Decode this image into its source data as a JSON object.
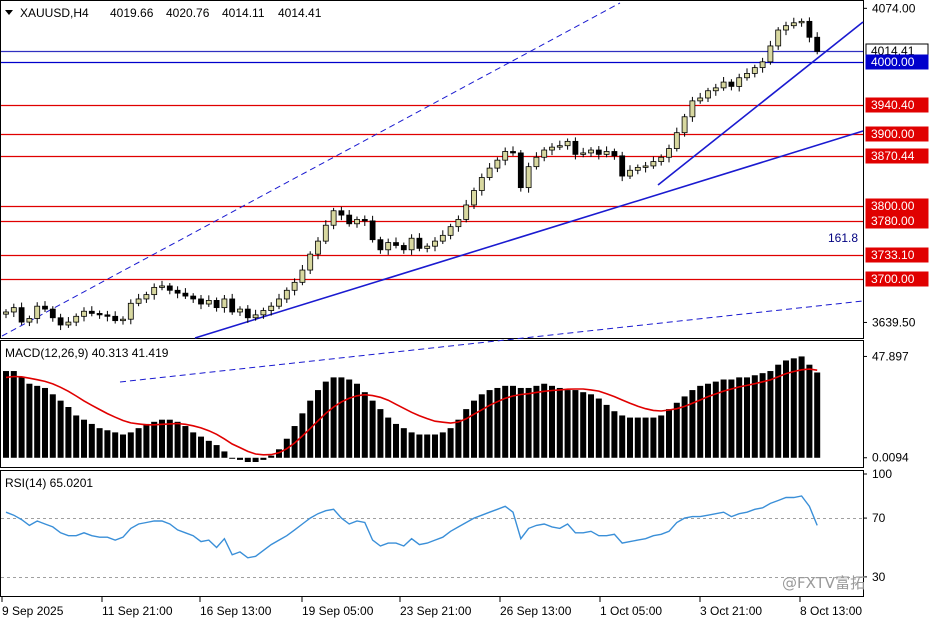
{
  "header": {
    "symbol": "XAUUSD,H4",
    "open": "4019.66",
    "high": "4020.76",
    "low": "4014.11",
    "close": "4014.41"
  },
  "watermark": "@FXTV富拓",
  "colors": {
    "bull_candle": "#d8d8a0",
    "bear_candle": "#000000",
    "trendline": "#1a1ad0",
    "level_red": "#e00000",
    "level_blue": "#0000cc",
    "macd_signal": "#e00000",
    "rsi_line": "#3a8fd8",
    "label_red_bg": "#e00000",
    "label_blue_bg": "#0000cc"
  },
  "chart_data": [
    {
      "type": "candlestick",
      "panel": "price",
      "ylim": [
        3618,
        4080
      ],
      "y_ticks": [
        "4074.00",
        "3639.50"
      ],
      "price_axis_labels": [
        {
          "text": "4014.41",
          "value": 4014.41,
          "style": "current"
        },
        {
          "text": "4000.00",
          "value": 4000.0,
          "style": "blue"
        },
        {
          "text": "3940.40",
          "value": 3940.4,
          "style": "red"
        },
        {
          "text": "3900.00",
          "value": 3900.0,
          "style": "red"
        },
        {
          "text": "3870.44",
          "value": 3870.44,
          "style": "red"
        },
        {
          "text": "3800.00",
          "value": 3800.0,
          "style": "red"
        },
        {
          "text": "3780.00",
          "value": 3780.0,
          "style": "red"
        },
        {
          "text": "3733.10",
          "value": 3733.1,
          "style": "red"
        },
        {
          "text": "3700.00",
          "value": 3700.0,
          "style": "red"
        }
      ],
      "horizontal_levels": [
        {
          "value": 4014.41,
          "color": "#3030c0"
        },
        {
          "value": 4000.0,
          "color": "#0000cc"
        },
        {
          "value": 3940.4,
          "color": "#e00000"
        },
        {
          "value": 3900.0,
          "color": "#e00000"
        },
        {
          "value": 3870.44,
          "color": "#e00000"
        },
        {
          "value": 3800.0,
          "color": "#e00000"
        },
        {
          "value": 3780.0,
          "color": "#e00000"
        },
        {
          "value": 3733.1,
          "color": "#e00000"
        },
        {
          "value": 3700.0,
          "color": "#e00000"
        }
      ],
      "annotation": "161.8",
      "close_series": [
        3654,
        3660,
        3640,
        3645,
        3662,
        3658,
        3646,
        3636,
        3640,
        3648,
        3655,
        3652,
        3650,
        3648,
        3642,
        3644,
        3666,
        3672,
        3678,
        3688,
        3690,
        3684,
        3680,
        3676,
        3672,
        3665,
        3670,
        3660,
        3672,
        3654,
        3658,
        3646,
        3650,
        3656,
        3662,
        3672,
        3684,
        3695,
        3712,
        3734,
        3752,
        3774,
        3794,
        3788,
        3776,
        3782,
        3780,
        3754,
        3740,
        3750,
        3746,
        3740,
        3756,
        3742,
        3745,
        3752,
        3760,
        3772,
        3782,
        3802,
        3822,
        3840,
        3853,
        3864,
        3876,
        3874,
        3826,
        3855,
        3868,
        3878,
        3882,
        3884,
        3890,
        3872,
        3874,
        3878,
        3872,
        3876,
        3870,
        3842,
        3850,
        3854,
        3856,
        3862,
        3868,
        3880,
        3902,
        3924,
        3946,
        3950,
        3960,
        3964,
        3972,
        3966,
        3978,
        3984,
        3992,
        4000,
        4022,
        4044,
        4050,
        4054,
        4056,
        4034,
        4014.41
      ],
      "bearish_indices": [
        2,
        5,
        6,
        7,
        11,
        12,
        13,
        14,
        21,
        22,
        23,
        24,
        25,
        27,
        29,
        31,
        43,
        44,
        46,
        47,
        48,
        50,
        51,
        53,
        65,
        66,
        73,
        76,
        78,
        79,
        93,
        103,
        104
      ]
    },
    {
      "type": "bar+line",
      "panel": "macd",
      "label": "MACD(12,26,9) 40.313 41.419",
      "ylim": [
        -2,
        50
      ],
      "y_ticks": [
        "47.897",
        "0.0094"
      ],
      "main_values": [
        41,
        41,
        38,
        35,
        34,
        33,
        30,
        27,
        24,
        20,
        18,
        16,
        14,
        13,
        12,
        11,
        12,
        14,
        16,
        17,
        18,
        18,
        17,
        15,
        12,
        10,
        8,
        6,
        3,
        0,
        -1,
        -2,
        -2,
        -1,
        1,
        4,
        9,
        15,
        21,
        27,
        32,
        36,
        38,
        38,
        37,
        35,
        31,
        27,
        23,
        19,
        16,
        14,
        12,
        11,
        11,
        11,
        12,
        14,
        18,
        23,
        27,
        30,
        32,
        33,
        34,
        34,
        33,
        33,
        34,
        35,
        34,
        33,
        32,
        32,
        31,
        30,
        28,
        25,
        22,
        20,
        19,
        19,
        19,
        19,
        20,
        23,
        26,
        29,
        32,
        34,
        35,
        36,
        37,
        37,
        38,
        38,
        39,
        40,
        41,
        44,
        46,
        47,
        47.9,
        44,
        40.313
      ],
      "signal_values": [
        38,
        38.4,
        38.3,
        37.6,
        36.9,
        36.1,
        34.9,
        33.3,
        31.4,
        29.2,
        26.9,
        24.8,
        22.8,
        20.9,
        19.2,
        17.6,
        16.5,
        16,
        15.6,
        15.6,
        15.8,
        16,
        16.2,
        15.8,
        15.1,
        14.1,
        12.8,
        11.1,
        8.9,
        6.5,
        4.8,
        3,
        1.8,
        1.4,
        1.5,
        2.4,
        4.3,
        7,
        10.3,
        13.8,
        17.5,
        21,
        24,
        26.4,
        28.1,
        29.3,
        29.8,
        29.4,
        28.6,
        27.2,
        25.3,
        23.4,
        21.5,
        19.9,
        18.5,
        17.3,
        16.8,
        16.4,
        16.9,
        18.4,
        20.6,
        22.7,
        24.8,
        26.5,
        28.1,
        29.2,
        29.9,
        30.3,
        30.9,
        31.4,
        31.8,
        32.1,
        32.4,
        32.5,
        32.5,
        32.1,
        31.5,
        30.3,
        28.9,
        27.3,
        25.8,
        24.4,
        23.2,
        22.4,
        22.1,
        22.6,
        23.2,
        24.3,
        25.8,
        27.3,
        28.9,
        30.2,
        31.5,
        32.5,
        33.5,
        34.2,
        35,
        35.9,
        36.8,
        38.3,
        39.8,
        40.8,
        41.6,
        41.9,
        41.419
      ]
    },
    {
      "type": "line",
      "panel": "rsi",
      "label": "RSI(14) 65.0201",
      "ylim": [
        17,
        100
      ],
      "y_ticks": [
        "100",
        "70",
        "30"
      ],
      "levels": [
        70,
        30
      ],
      "values": [
        74,
        72,
        69,
        65,
        68,
        66,
        64,
        60,
        58,
        58,
        60,
        58,
        57,
        57,
        55,
        57,
        63,
        66,
        67,
        68,
        68,
        66,
        62,
        60,
        58,
        54,
        55,
        50,
        56,
        45,
        47,
        43,
        44,
        48,
        52,
        55,
        58,
        62,
        66,
        70,
        73,
        75,
        76,
        70,
        66,
        68,
        67,
        55,
        51,
        53,
        53,
        51,
        56,
        52,
        53,
        55,
        57,
        61,
        64,
        67,
        70,
        72,
        74,
        76,
        78,
        74,
        56,
        63,
        65,
        66,
        64,
        63,
        66,
        60,
        60,
        61,
        58,
        58,
        59,
        53,
        54,
        55,
        56,
        58,
        59,
        61,
        67,
        70,
        71,
        71,
        72,
        73,
        74,
        71,
        73,
        74,
        76,
        77,
        80,
        82,
        84,
        84,
        85,
        78,
        65.0201
      ]
    }
  ],
  "time_axis": {
    "labels": [
      "9 Sep 2025",
      "11 Sep 21:00",
      "16 Sep 13:00",
      "19 Sep 05:00",
      "23 Sep 21:00",
      "26 Sep 13:00",
      "1 Oct 05:00",
      "3 Oct 21:00",
      "8 Oct 13:00"
    ]
  }
}
